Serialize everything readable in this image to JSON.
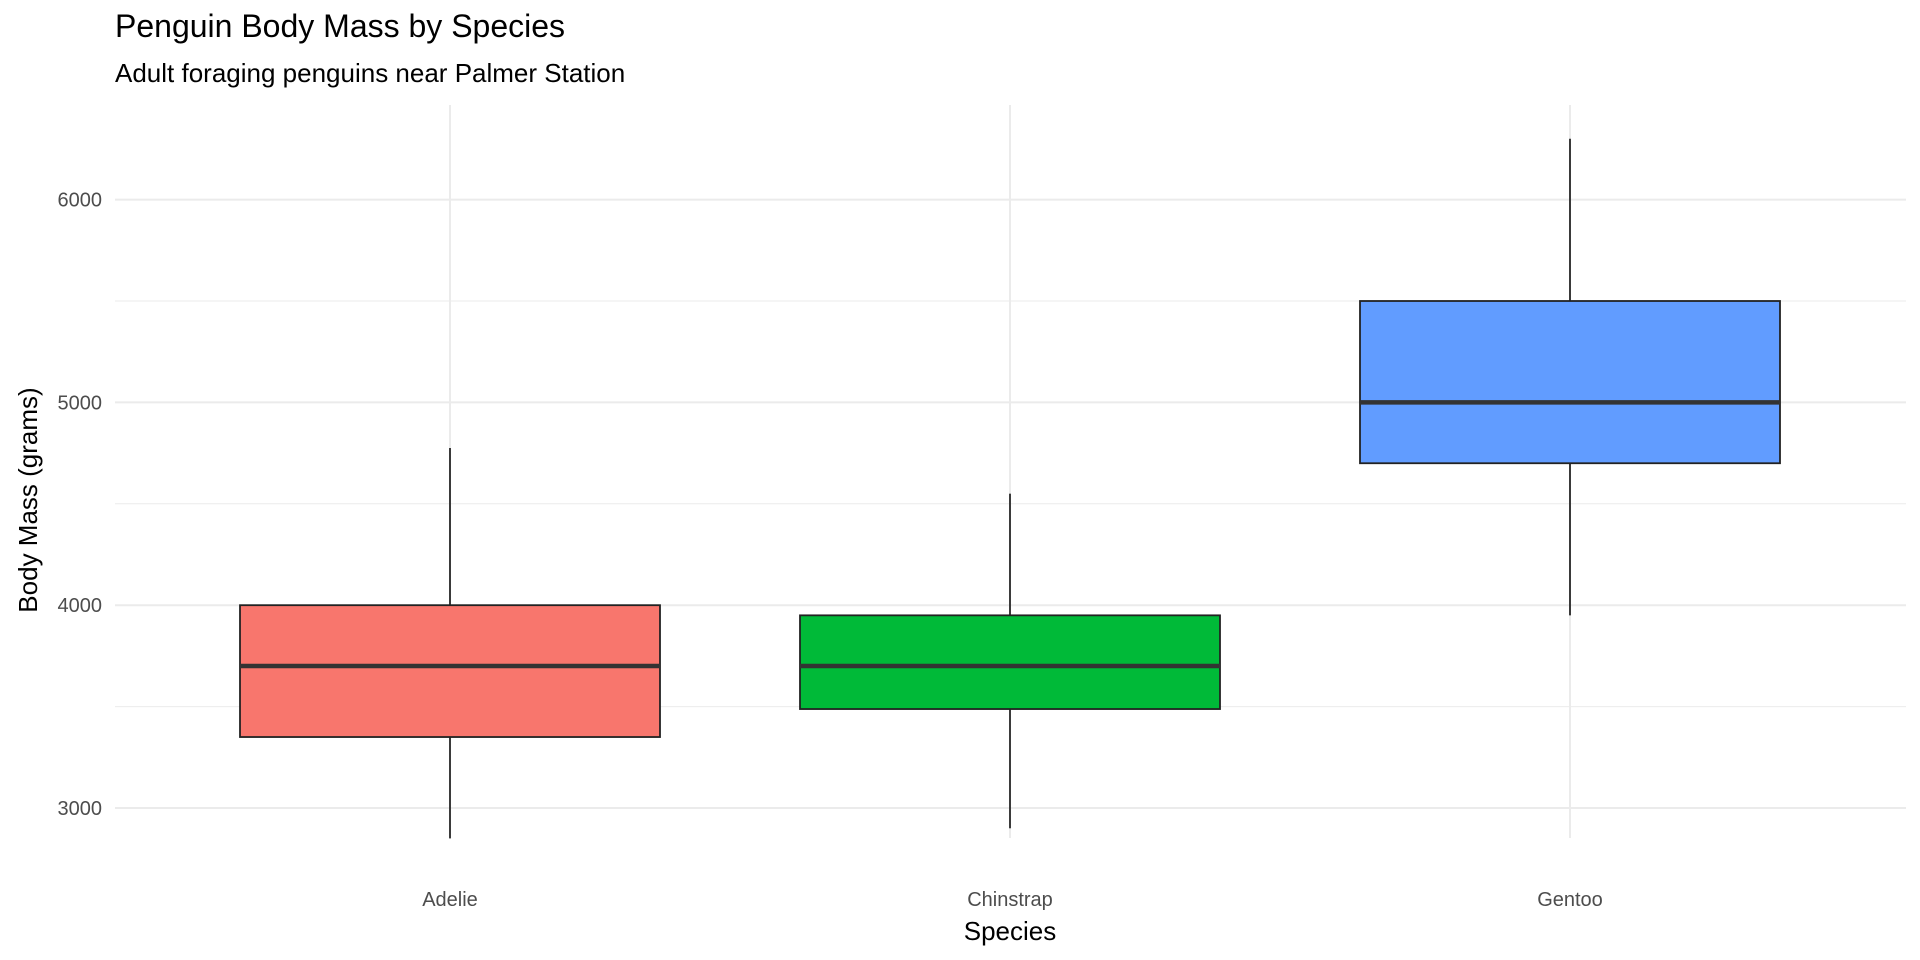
{
  "chart_data": {
    "type": "boxplot",
    "title": "Penguin Body Mass by Species",
    "subtitle": "Adult foraging penguins near Palmer Station",
    "xlabel": "Species",
    "ylabel": "Body Mass (grams)",
    "ylim": [
      2700,
      6450
    ],
    "yticks": [
      3000,
      4000,
      5000,
      6000
    ],
    "y_minor_ticks": [
      3500,
      4500,
      5500
    ],
    "grid": true,
    "legend": "none",
    "categories": [
      "Adelie",
      "Chinstrap",
      "Gentoo"
    ],
    "boxes": [
      {
        "category": "Adelie",
        "whisker_low": 2850,
        "q1": 3350,
        "median": 3700,
        "q3": 4000,
        "whisker_high": 4775,
        "color": "#F8766D"
      },
      {
        "category": "Chinstrap",
        "whisker_low": 2900,
        "q1": 3488,
        "median": 3700,
        "q3": 3950,
        "whisker_high": 4550,
        "color": "#00BA38"
      },
      {
        "category": "Gentoo",
        "whisker_low": 3950,
        "q1": 4700,
        "median": 5000,
        "q3": 5500,
        "whisker_high": 6300,
        "color": "#619CFF"
      }
    ]
  }
}
